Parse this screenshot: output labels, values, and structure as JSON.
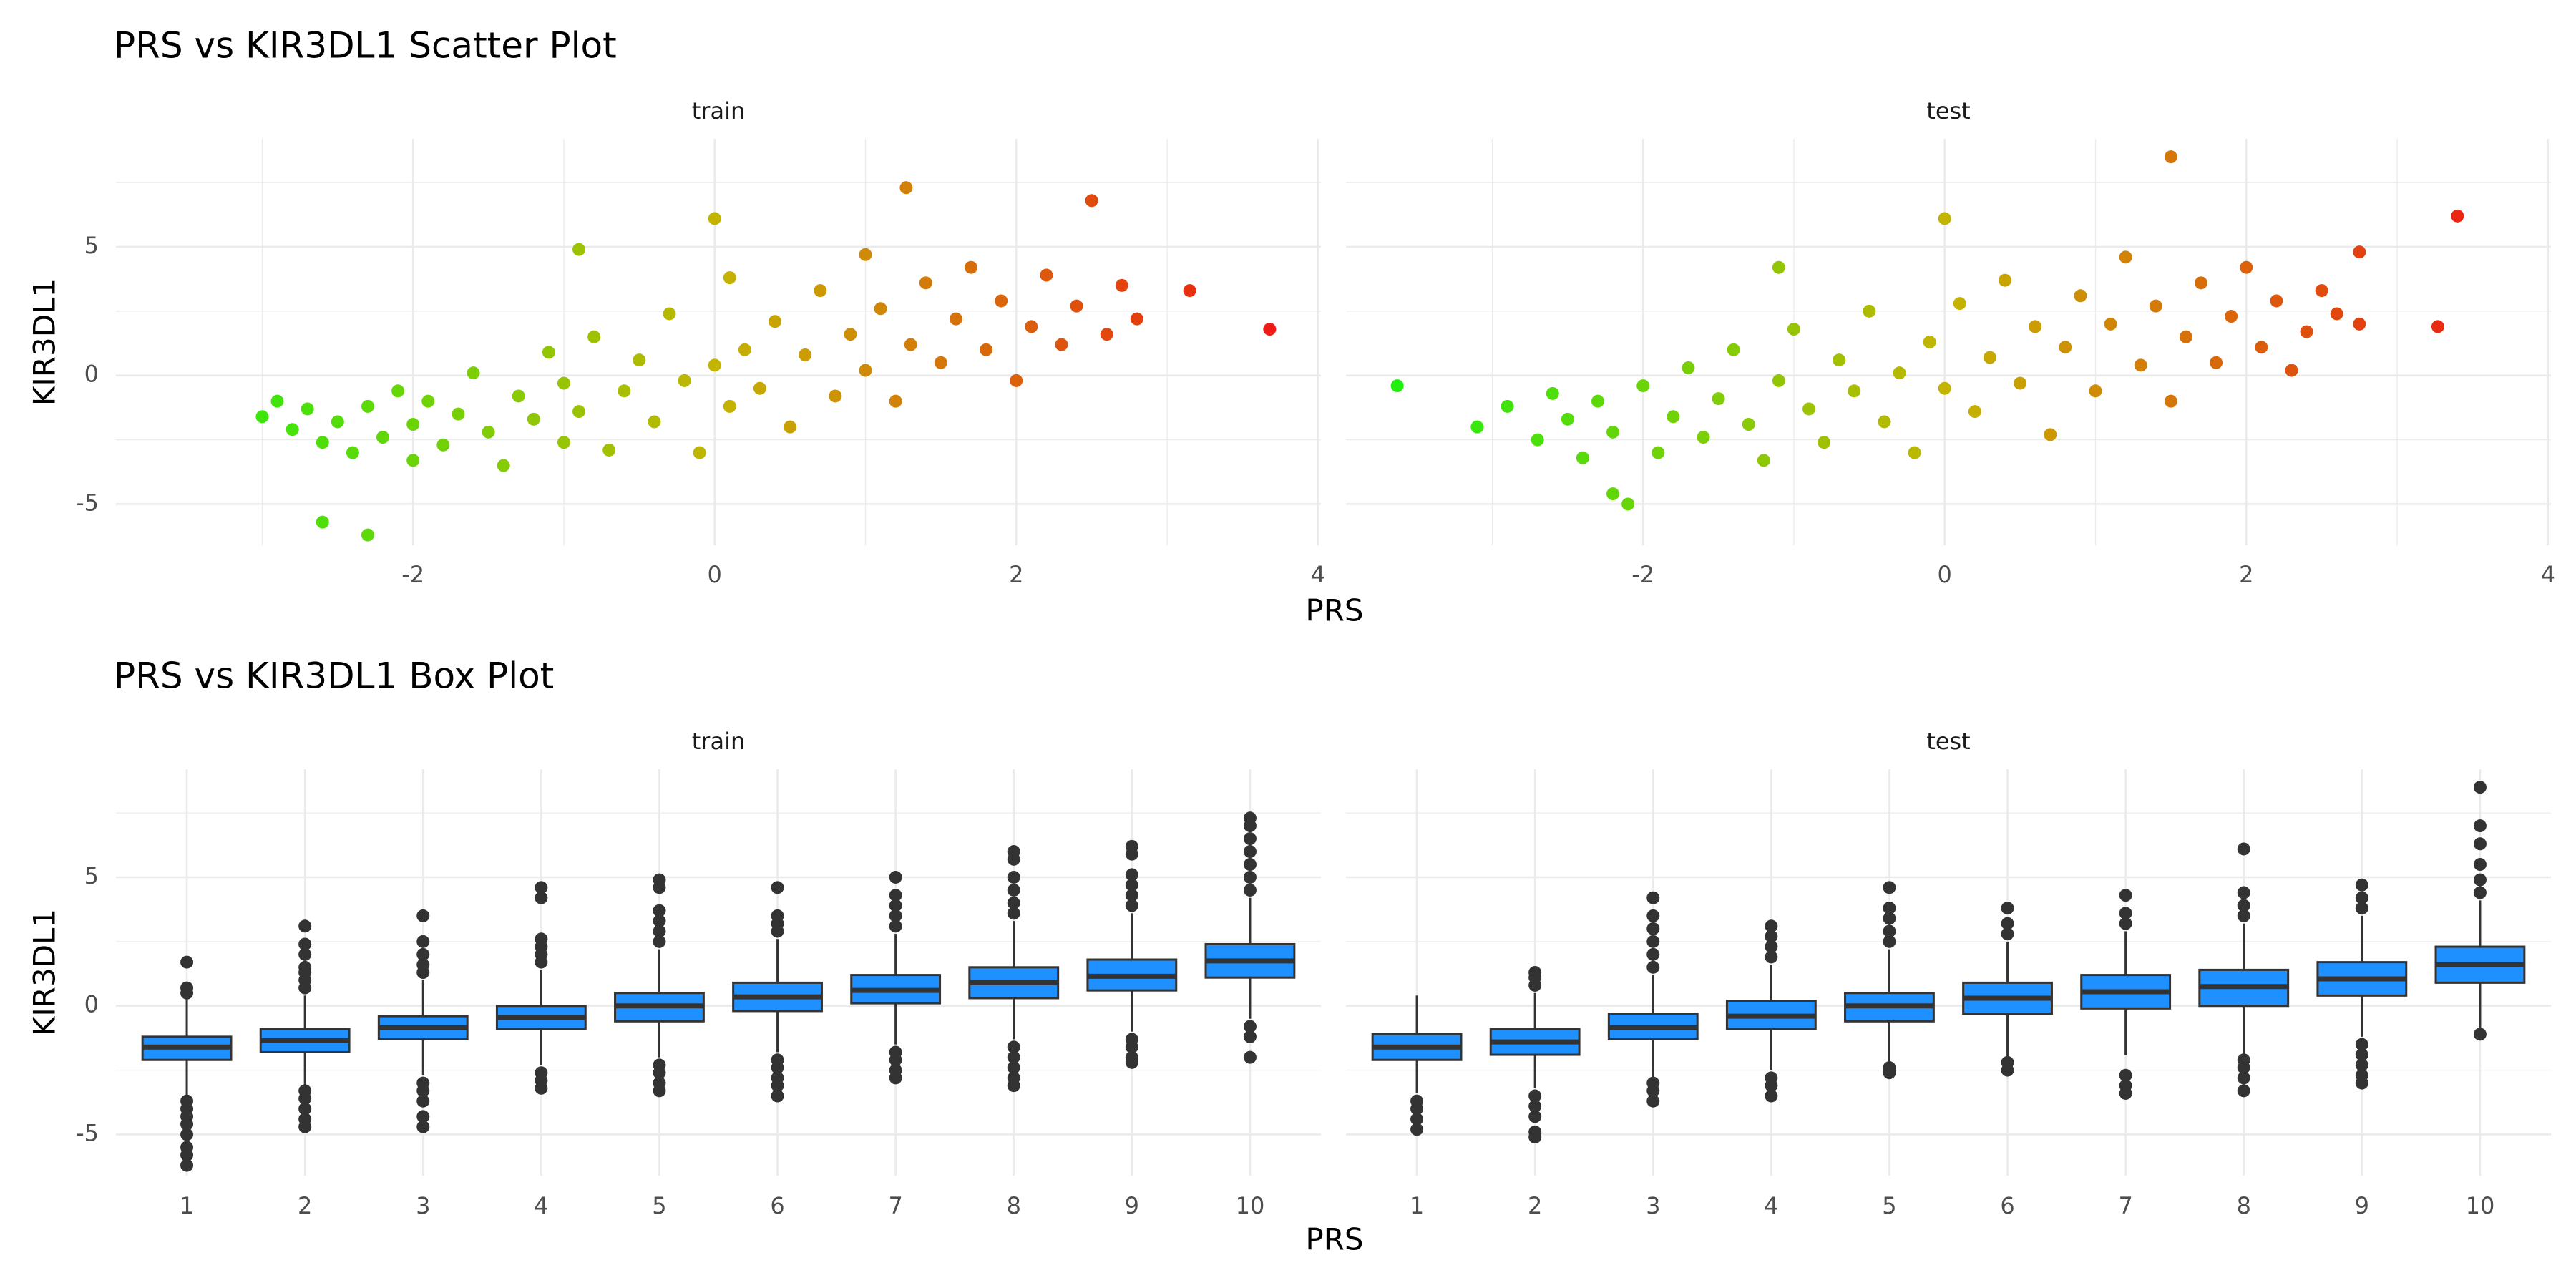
{
  "chart_data": [
    {
      "type": "scatter",
      "title": "PRS vs KIR3DL1 Scatter Plot",
      "x_label": "PRS",
      "y_label": "KIR3DL1",
      "xlim": [
        -3.97,
        4.02
      ],
      "xticks": [
        -2,
        0,
        2,
        4
      ],
      "xminor": [
        -3,
        -1,
        1,
        3
      ],
      "ylim": [
        -6.6,
        9.2
      ],
      "yticks": [
        -5,
        0,
        5
      ],
      "yminor": [
        -2.5,
        2.5,
        7.5
      ],
      "grid": true,
      "colors": [
        "#22ee10",
        "#c4b400",
        "#ee1a14"
      ],
      "facets": [
        {
          "name": "train",
          "x": [
            -3.0,
            -2.9,
            -2.8,
            -2.7,
            -2.6,
            -2.5,
            -2.4,
            -2.3,
            -2.2,
            -2.1,
            -2.0,
            -2.0,
            -1.9,
            -1.8,
            -1.7,
            -1.6,
            -1.5,
            -1.4,
            -1.3,
            -1.2,
            -1.1,
            -1.0,
            -1.0,
            -0.9,
            -0.8,
            -0.7,
            -0.6,
            -0.5,
            -0.4,
            -0.3,
            -0.2,
            -0.1,
            0.0,
            0.1,
            0.1,
            0.2,
            0.3,
            0.4,
            0.5,
            0.6,
            0.7,
            0.8,
            0.9,
            1.0,
            1.0,
            1.1,
            1.2,
            1.3,
            1.4,
            1.5,
            1.6,
            1.7,
            1.8,
            1.9,
            2.0,
            2.1,
            2.2,
            2.3,
            2.4,
            2.5,
            2.6,
            2.7,
            2.8,
            3.15,
            3.68,
            1.27,
            -2.3,
            -2.6,
            0.0,
            -0.9
          ],
          "y": [
            -1.6,
            -1.0,
            -2.1,
            -1.3,
            -2.6,
            -1.8,
            -3.0,
            -1.2,
            -2.4,
            -0.6,
            -3.3,
            -1.9,
            -1.0,
            -2.7,
            -1.5,
            0.1,
            -2.2,
            -3.5,
            -0.8,
            -1.7,
            0.9,
            -2.6,
            -0.3,
            -1.4,
            1.5,
            -2.9,
            -0.6,
            0.6,
            -1.8,
            2.4,
            -0.2,
            -3.0,
            0.4,
            -1.2,
            3.8,
            1.0,
            -0.5,
            2.1,
            -2.0,
            0.8,
            3.3,
            -0.8,
            1.6,
            0.2,
            4.7,
            2.6,
            -1.0,
            1.2,
            3.6,
            0.5,
            2.2,
            4.2,
            1.0,
            2.9,
            -0.2,
            1.9,
            3.9,
            1.2,
            2.7,
            6.8,
            1.6,
            3.5,
            2.2,
            3.3,
            1.8,
            7.3,
            -6.2,
            -5.7,
            6.1,
            4.9
          ]
        },
        {
          "name": "test",
          "x": [
            -3.63,
            -3.1,
            -2.9,
            -2.7,
            -2.6,
            -2.5,
            -2.4,
            -2.3,
            -2.2,
            -2.1,
            -2.0,
            -1.9,
            -1.8,
            -1.7,
            -1.6,
            -1.5,
            -1.4,
            -1.3,
            -1.2,
            -1.1,
            -1.0,
            -0.9,
            -0.8,
            -0.7,
            -0.6,
            -0.5,
            -0.4,
            -0.3,
            -0.2,
            -0.1,
            0.0,
            0.0,
            0.1,
            0.2,
            0.3,
            0.4,
            0.5,
            0.6,
            0.7,
            0.8,
            0.9,
            1.0,
            1.1,
            1.2,
            1.3,
            1.4,
            1.5,
            1.5,
            1.6,
            1.7,
            1.8,
            1.9,
            2.0,
            2.1,
            2.2,
            2.3,
            2.4,
            2.5,
            2.6,
            2.75,
            2.75,
            3.27,
            3.4,
            -1.1,
            -2.2
          ],
          "y": [
            -0.4,
            -2.0,
            -1.2,
            -2.5,
            -0.7,
            -1.7,
            -3.2,
            -1.0,
            -2.2,
            -5.0,
            -0.4,
            -3.0,
            -1.6,
            0.3,
            -2.4,
            -0.9,
            1.0,
            -1.9,
            -3.3,
            -0.2,
            1.8,
            -1.3,
            -2.6,
            0.6,
            -0.6,
            2.5,
            -1.8,
            0.1,
            -3.0,
            1.3,
            -0.5,
            6.1,
            2.8,
            -1.4,
            0.7,
            3.7,
            -0.3,
            1.9,
            -2.3,
            1.1,
            3.1,
            -0.6,
            2.0,
            4.6,
            0.4,
            2.7,
            8.5,
            -1.0,
            1.5,
            3.6,
            0.5,
            2.3,
            4.2,
            1.1,
            2.9,
            0.2,
            1.7,
            3.3,
            2.4,
            4.8,
            2.0,
            1.9,
            6.2,
            4.2,
            -4.6
          ]
        }
      ]
    },
    {
      "type": "box",
      "title": "PRS vs KIR3DL1 Box Plot",
      "x_label": "PRS",
      "y_label": "KIR3DL1",
      "categories": [
        1,
        2,
        3,
        4,
        5,
        6,
        7,
        8,
        9,
        10
      ],
      "ylim": [
        -6.6,
        9.2
      ],
      "yticks": [
        -5,
        0,
        5
      ],
      "yminor": [
        -2.5,
        2.5,
        7.5
      ],
      "grid": true,
      "fill": "#1e90ff",
      "outline": "#333333",
      "facets": [
        {
          "name": "train",
          "boxes": [
            {
              "low": -3.6,
              "q1": -2.1,
              "median": -1.6,
              "q3": -1.2,
              "high": 0.3,
              "outliers": [
                0.5,
                0.7,
                1.7,
                -3.7,
                -4.0,
                -4.3,
                -4.6,
                -5.0,
                -5.5,
                -5.8,
                -6.2
              ]
            },
            {
              "low": -3.1,
              "q1": -1.8,
              "median": -1.35,
              "q3": -0.9,
              "high": 0.4,
              "outliers": [
                0.7,
                1.0,
                1.3,
                1.5,
                2.0,
                2.4,
                3.1,
                -3.3,
                -3.6,
                -4.0,
                -4.4,
                -4.7
              ]
            },
            {
              "low": -2.7,
              "q1": -1.3,
              "median": -0.85,
              "q3": -0.4,
              "high": 1.0,
              "outliers": [
                1.3,
                1.6,
                2.0,
                2.5,
                3.5,
                -3.0,
                -3.3,
                -3.7,
                -4.3,
                -4.7
              ]
            },
            {
              "low": -2.3,
              "q1": -0.9,
              "median": -0.45,
              "q3": 0.0,
              "high": 1.4,
              "outliers": [
                1.7,
                2.0,
                2.3,
                2.6,
                4.2,
                4.6,
                -2.6,
                -2.9,
                -3.2
              ]
            },
            {
              "low": -2.0,
              "q1": -0.6,
              "median": 0.0,
              "q3": 0.5,
              "high": 2.2,
              "outliers": [
                2.5,
                2.9,
                3.3,
                3.7,
                4.6,
                4.9,
                -2.3,
                -2.6,
                -3.0,
                -3.3
              ]
            },
            {
              "low": -1.8,
              "q1": -0.2,
              "median": 0.35,
              "q3": 0.9,
              "high": 2.6,
              "outliers": [
                2.9,
                3.2,
                3.5,
                4.6,
                -2.1,
                -2.4,
                -2.8,
                -3.1,
                -3.5
              ]
            },
            {
              "low": -1.5,
              "q1": 0.1,
              "median": 0.6,
              "q3": 1.2,
              "high": 2.8,
              "outliers": [
                3.1,
                3.5,
                3.9,
                4.3,
                5.0,
                -1.8,
                -2.1,
                -2.5,
                -2.8
              ]
            },
            {
              "low": -1.3,
              "q1": 0.3,
              "median": 0.9,
              "q3": 1.5,
              "high": 3.3,
              "outliers": [
                3.6,
                4.0,
                4.5,
                5.0,
                5.7,
                6.0,
                -1.6,
                -2.0,
                -2.4,
                -2.8,
                -3.1
              ]
            },
            {
              "low": -1.0,
              "q1": 0.6,
              "median": 1.15,
              "q3": 1.8,
              "high": 3.6,
              "outliers": [
                3.9,
                4.3,
                4.7,
                5.1,
                5.9,
                6.2,
                -1.3,
                -1.6,
                -2.0,
                -2.2
              ]
            },
            {
              "low": -0.5,
              "q1": 1.1,
              "median": 1.75,
              "q3": 2.4,
              "high": 4.2,
              "outliers": [
                4.5,
                5.0,
                5.5,
                6.0,
                6.5,
                7.0,
                7.3,
                -0.8,
                -1.2,
                -2.0
              ]
            }
          ]
        },
        {
          "name": "test",
          "boxes": [
            {
              "low": -3.4,
              "q1": -2.1,
              "median": -1.6,
              "q3": -1.1,
              "high": 0.4,
              "outliers": [
                -3.7,
                -4.0,
                -4.4,
                -4.8
              ]
            },
            {
              "low": -3.2,
              "q1": -1.9,
              "median": -1.4,
              "q3": -0.9,
              "high": 0.5,
              "outliers": [
                0.8,
                1.1,
                1.3,
                -3.5,
                -3.9,
                -4.3,
                -4.9,
                -5.1
              ]
            },
            {
              "low": -2.8,
              "q1": -1.3,
              "median": -0.85,
              "q3": -0.3,
              "high": 1.2,
              "outliers": [
                1.5,
                2.0,
                2.5,
                3.0,
                3.5,
                4.2,
                -3.0,
                -3.3,
                -3.7
              ]
            },
            {
              "low": -2.5,
              "q1": -0.9,
              "median": -0.4,
              "q3": 0.2,
              "high": 1.6,
              "outliers": [
                1.9,
                2.3,
                2.7,
                3.1,
                -2.8,
                -3.1,
                -3.5
              ]
            },
            {
              "low": -2.2,
              "q1": -0.6,
              "median": 0.0,
              "q3": 0.5,
              "high": 2.2,
              "outliers": [
                2.5,
                2.9,
                3.4,
                3.8,
                4.6,
                -2.4,
                -2.6
              ]
            },
            {
              "low": -2.0,
              "q1": -0.3,
              "median": 0.3,
              "q3": 0.9,
              "high": 2.5,
              "outliers": [
                2.8,
                3.2,
                3.8,
                -2.2,
                -2.5
              ]
            },
            {
              "low": -1.9,
              "q1": -0.1,
              "median": 0.55,
              "q3": 1.2,
              "high": 2.9,
              "outliers": [
                3.2,
                3.6,
                4.3,
                -2.7,
                -3.1,
                -3.4
              ]
            },
            {
              "low": -1.9,
              "q1": 0.0,
              "median": 0.75,
              "q3": 1.4,
              "high": 3.2,
              "outliers": [
                3.5,
                3.9,
                4.4,
                6.1,
                -2.1,
                -2.4,
                -2.8,
                -3.3
              ]
            },
            {
              "low": -1.2,
              "q1": 0.4,
              "median": 1.05,
              "q3": 1.7,
              "high": 3.5,
              "outliers": [
                3.8,
                4.2,
                4.7,
                -1.5,
                -1.9,
                -2.3,
                -2.7,
                -3.0
              ]
            },
            {
              "low": -0.9,
              "q1": 0.9,
              "median": 1.6,
              "q3": 2.3,
              "high": 4.1,
              "outliers": [
                4.4,
                4.9,
                5.5,
                6.3,
                7.0,
                8.5,
                -1.1
              ]
            }
          ]
        }
      ]
    }
  ]
}
